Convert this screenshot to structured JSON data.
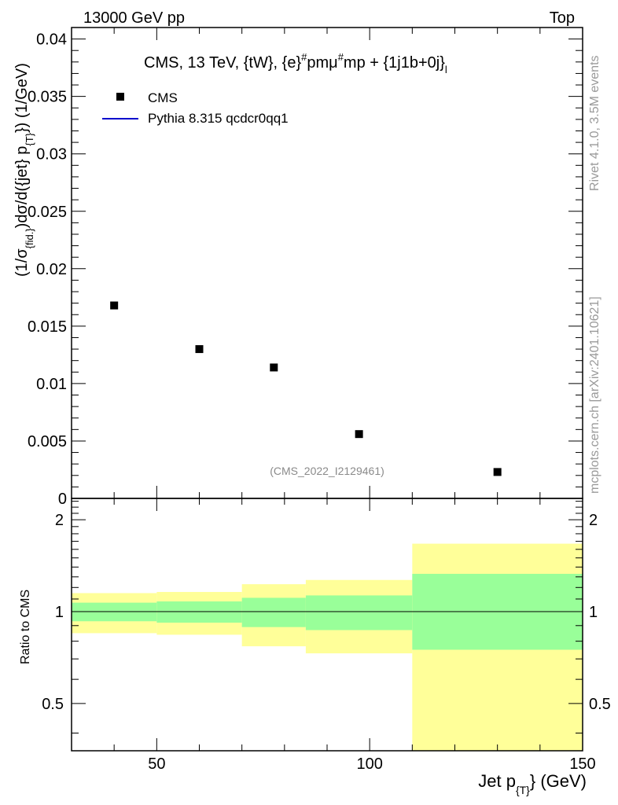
{
  "header": {
    "left": "13000 GeV pp",
    "right": "Top"
  },
  "side_labels": {
    "rivet": "Rivet 4.1.0,  3.5M events",
    "mcplots": "mcplots.cern.ch [arXiv:2401.10621]"
  },
  "analysis_tag": "(CMS_2022_I2129461)",
  "chart_data": [
    {
      "type": "scatter",
      "title": "CMS, 13 TeV, {tW}, {e}#pmμ#mp + {1j1b+0j}",
      "title_main": "CMS, 13 TeV, {tW}, {e}",
      "title_sup1": "#",
      "title_mid": "pmμ",
      "title_sup2": "#",
      "title_end": "mp + {1j1b+0j}",
      "title_sub": "l",
      "ylabel": "(1/σ_{fid.})dσ/d({jet} p_{T}) (1/GeV)",
      "ylabel_a": "(1/σ",
      "ylabel_sub1": "{fid.}",
      "ylabel_b": ")dσ/d({jet} p",
      "ylabel_sub2": "{T}",
      "ylabel_c": "}) (1/GeV)",
      "xlim": [
        30,
        150
      ],
      "ylim": [
        0,
        0.041
      ],
      "y_ticks": [
        0,
        0.005,
        0.01,
        0.015,
        0.02,
        0.025,
        0.03,
        0.035,
        0.04
      ],
      "y_tick_labels": [
        "0",
        "0.005",
        "0.01",
        "0.015",
        "0.02",
        "0.025",
        "0.03",
        "0.035",
        "0.04"
      ],
      "legend": [
        {
          "name": "CMS",
          "marker": "square",
          "color": "#000000"
        },
        {
          "name": "Pythia 8.315 qcdcr0qq1",
          "marker": "line",
          "color": "#0000cc"
        }
      ],
      "series": [
        {
          "name": "CMS",
          "x": [
            40,
            60,
            77.5,
            97.5,
            130
          ],
          "y": [
            0.0168,
            0.013,
            0.0114,
            0.0056,
            0.0023
          ]
        }
      ]
    },
    {
      "type": "area",
      "ylabel": "Ratio to CMS",
      "xlabel": "Jet p_{T} (GeV)",
      "xlabel_a": "Jet p",
      "xlabel_sub": "{T}",
      "xlabel_b": "} (GeV)",
      "xlim": [
        30,
        150
      ],
      "ylim": [
        0.35,
        2.35
      ],
      "y_ticks": [
        0.5,
        1,
        2
      ],
      "y_tick_labels": [
        "0.5",
        "1",
        "2"
      ],
      "x_ticks": [
        50,
        100,
        150
      ],
      "x_tick_labels": [
        "50",
        "100",
        "150"
      ],
      "reference_line": 1,
      "bands": {
        "edges": [
          30,
          50,
          70,
          85,
          110,
          150
        ],
        "inner_low": [
          0.93,
          0.92,
          0.89,
          0.87,
          0.75
        ],
        "inner_high": [
          1.07,
          1.08,
          1.11,
          1.13,
          1.33
        ],
        "outer_low": [
          0.85,
          0.84,
          0.77,
          0.73,
          0.33
        ],
        "outer_high": [
          1.15,
          1.16,
          1.23,
          1.27,
          1.67
        ],
        "inner_color": "#99ff99",
        "outer_color": "#ffff99"
      }
    }
  ]
}
